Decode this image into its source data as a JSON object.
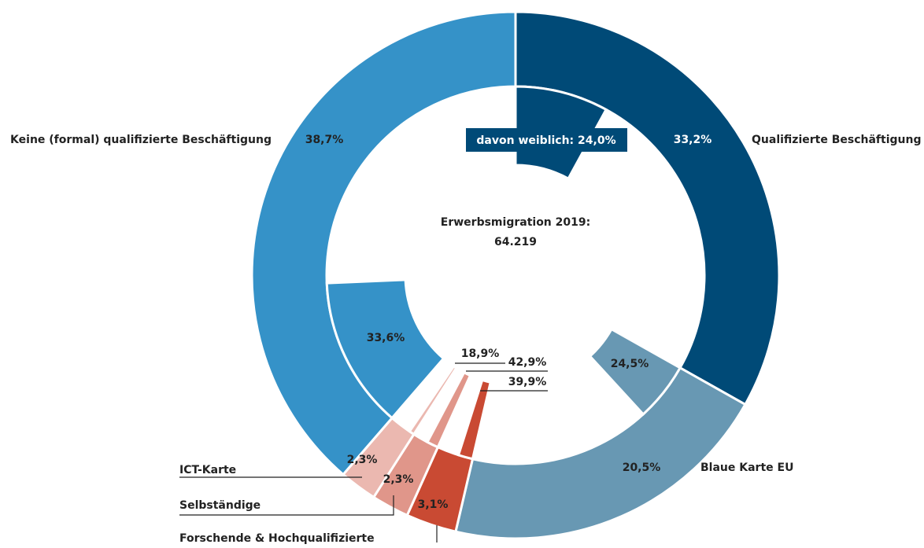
{
  "chart_data": {
    "type": "donut",
    "center_title": "Erwerbsmigration 2019:",
    "total": 64219,
    "total_label": "64.219",
    "categories": [
      "Qualifizierte Beschäftigung",
      "Blaue Karte EU",
      "Forschende & Hochqualifizierte",
      "Selbständige",
      "ICT-Karte",
      "Keine (formal) qualifizierte Beschäftigung"
    ],
    "values": [
      33.2,
      20.5,
      3.1,
      2.3,
      2.3,
      38.7
    ],
    "value_labels": [
      "33,2%",
      "20,5%",
      "3,1%",
      "2,3%",
      "2,3%",
      "38,7%"
    ],
    "colors": [
      "#004a77",
      "#6898b3",
      "#c94a33",
      "#e0968a",
      "#ebb8b0",
      "#3592c8"
    ],
    "inner_label": "davon weiblich:",
    "female_values": [
      24.0,
      24.5,
      39.9,
      42.9,
      18.9,
      33.6
    ],
    "female_value_labels": [
      "24,0%",
      "24,5%",
      "39,9%",
      "42,9%",
      "18,9%",
      "33,6%"
    ]
  }
}
